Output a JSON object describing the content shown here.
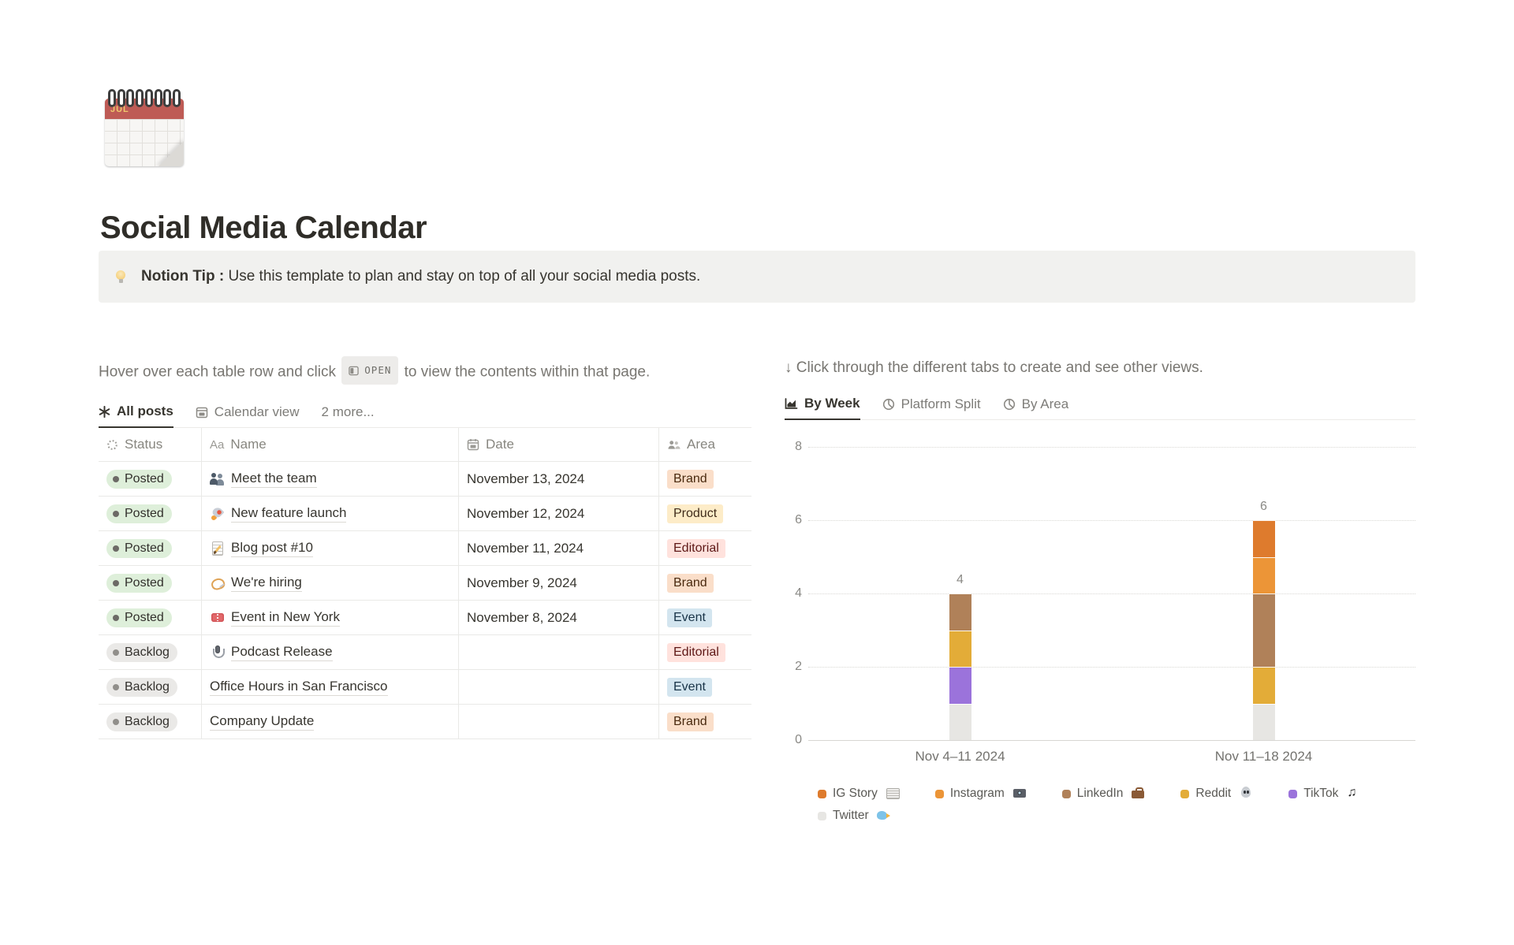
{
  "page": {
    "icon": "spiral-calendar",
    "icon_month": "JUL",
    "title": "Social Media Calendar",
    "callout": {
      "icon": "light-bulb",
      "emoji_char": "💡",
      "bold": "Notion Tip :",
      "text": "Use this template to plan and stay on top of all your social media posts."
    }
  },
  "left": {
    "instruction_prefix": "Hover over each table row and click",
    "open_badge": "OPEN",
    "instruction_suffix": "to view the contents within that page.",
    "tabs": [
      {
        "label": "All posts",
        "icon": "asterisk",
        "active": true
      },
      {
        "label": "Calendar view",
        "icon": "calendar",
        "active": false
      },
      {
        "label": "2 more...",
        "icon": null,
        "active": false
      }
    ],
    "table": {
      "columns": [
        {
          "label": "Status",
          "icon": "status-spinner"
        },
        {
          "label": "Name",
          "icon": "Aa"
        },
        {
          "label": "Date",
          "icon": "calendar"
        },
        {
          "label": "Area",
          "icon": "people"
        }
      ],
      "rows": [
        {
          "status": "Posted",
          "icon": "people",
          "emoji_char": "👥",
          "name": "Meet the team",
          "date": "November 13, 2024",
          "area": "Brand"
        },
        {
          "status": "Posted",
          "icon": "rocket",
          "emoji_char": "🚀",
          "name": "New feature launch",
          "date": "November 12, 2024",
          "area": "Product"
        },
        {
          "status": "Posted",
          "icon": "memo",
          "emoji_char": "📝",
          "name": "Blog post #10",
          "date": "November 11, 2024",
          "area": "Editorial"
        },
        {
          "status": "Posted",
          "icon": "needle-loop",
          "emoji_char": "🪡",
          "name": "We're hiring",
          "date": "November 9, 2024",
          "area": "Brand"
        },
        {
          "status": "Posted",
          "icon": "tickets",
          "emoji_char": "🎟",
          "name": "Event in New York",
          "date": "November 8, 2024",
          "area": "Event"
        },
        {
          "status": "Backlog",
          "icon": "microphone",
          "emoji_char": "🎙",
          "name": "Podcast Release",
          "date": "",
          "area": "Editorial"
        },
        {
          "status": "Backlog",
          "icon": null,
          "emoji_char": "",
          "name": "Office Hours in San Francisco",
          "date": "",
          "area": "Event"
        },
        {
          "status": "Backlog",
          "icon": null,
          "emoji_char": "",
          "name": "Company Update",
          "date": "",
          "area": "Brand"
        }
      ]
    }
  },
  "right": {
    "instruction": "↓ Click through the different tabs to create and see other views.",
    "tabs": [
      {
        "label": "By Week",
        "icon": "bar-chart",
        "active": true
      },
      {
        "label": "Platform Split",
        "icon": "pie-chart",
        "active": false
      },
      {
        "label": "By Area",
        "icon": "pie-chart",
        "active": false
      }
    ]
  },
  "chart_data": {
    "type": "bar",
    "stacked": true,
    "categories": [
      "Nov 4–11 2024",
      "Nov 11–18 2024"
    ],
    "series": [
      {
        "name": "IG Story 📰",
        "label": "IG Story",
        "icon": "newspaper",
        "values": [
          0,
          1
        ],
        "color": "#DE7B2D"
      },
      {
        "name": "Instagram 📸",
        "label": "Instagram",
        "icon": "camera",
        "values": [
          0,
          1
        ],
        "color": "#EC9537"
      },
      {
        "name": "LinkedIn 💼",
        "label": "LinkedIn",
        "icon": "briefcase",
        "values": [
          1,
          2
        ],
        "color": "#B08159"
      },
      {
        "name": "Reddit 👽",
        "label": "Reddit",
        "icon": "alien",
        "values": [
          1,
          1
        ],
        "color": "#E3AC38"
      },
      {
        "name": "TikTok 🎵",
        "label": "TikTok",
        "icon": "notes",
        "values": [
          1,
          0
        ],
        "color": "#9B73DB"
      },
      {
        "name": "Twitter 🐦",
        "label": "Twitter",
        "icon": "bird",
        "values": [
          1,
          1
        ],
        "color": "#E7E6E3"
      }
    ],
    "totals": [
      4,
      6
    ],
    "y_ticks": [
      0,
      2,
      4,
      6,
      8
    ],
    "ylim": [
      0,
      8
    ],
    "grid": "dotted-horizontal",
    "legend_position": "bottom",
    "title": "",
    "xlabel": "",
    "ylabel": ""
  },
  "colors": {
    "area_tags": {
      "Brand": {
        "bg": "#FADEC9",
        "text": "#49290E"
      },
      "Product": {
        "bg": "#FDECC8",
        "text": "#402C1B"
      },
      "Editorial": {
        "bg": "#FFE2DD",
        "text": "#5D1715"
      },
      "Event": {
        "bg": "#D3E5EF",
        "text": "#183347"
      }
    },
    "status": {
      "Posted": {
        "bg": "#DEEFDA",
        "dot": "#6C6A66"
      },
      "Backlog": {
        "bg": "#EAE9E7",
        "dot": "#918F8B"
      }
    },
    "callout_bg": "#F1F1EF"
  }
}
